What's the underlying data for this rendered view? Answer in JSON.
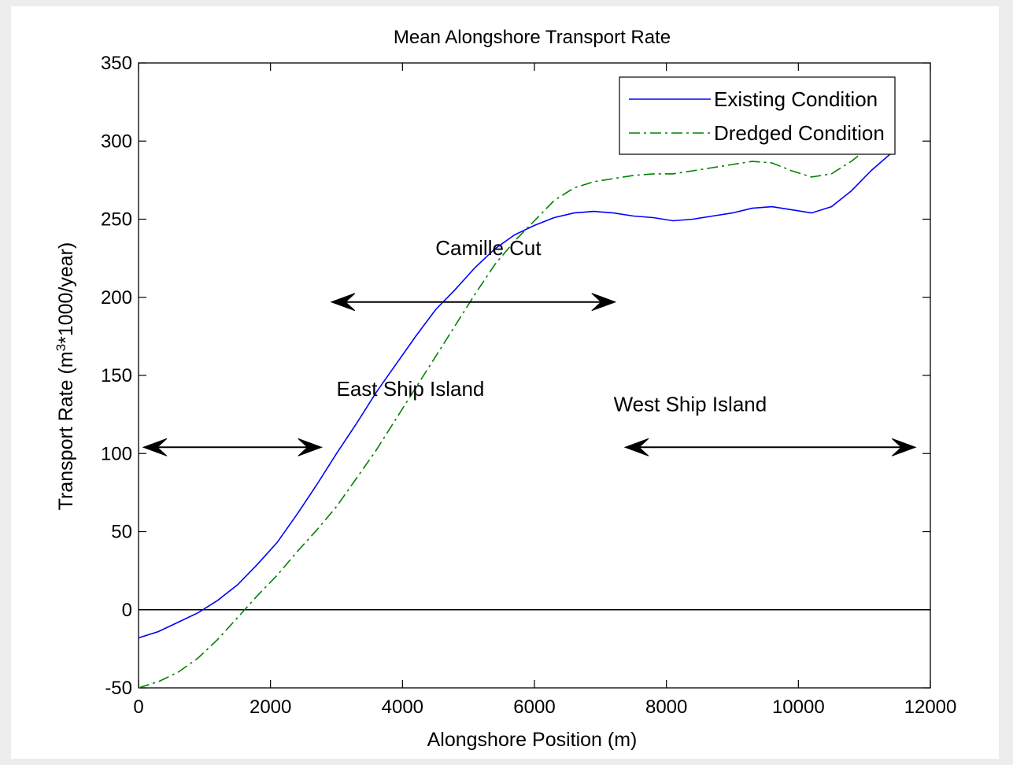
{
  "chart_data": {
    "type": "line",
    "title": "Mean Alongshore Transport Rate",
    "xlabel": "Alongshore Position (m)",
    "ylabel": "Transport Rate (m",
    "ylabel_sup": "3",
    "ylabel_suffix": "*1000/year)",
    "xlim": [
      0,
      12000
    ],
    "ylim": [
      -50,
      350
    ],
    "xticks": [
      0,
      2000,
      4000,
      6000,
      8000,
      10000,
      12000
    ],
    "yticks": [
      -50,
      0,
      50,
      100,
      150,
      200,
      250,
      300,
      350
    ],
    "grid": false,
    "legend_position": "top-right",
    "series": [
      {
        "name": "Existing Condition",
        "color": "#0000ff",
        "style": "solid",
        "x": [
          0,
          300,
          600,
          900,
          1200,
          1500,
          1800,
          2100,
          2400,
          2700,
          3000,
          3300,
          3600,
          3900,
          4200,
          4500,
          4800,
          5100,
          5400,
          5700,
          6000,
          6300,
          6600,
          6900,
          7200,
          7500,
          7800,
          8100,
          8400,
          8700,
          9000,
          9300,
          9600,
          9900,
          10200,
          10500,
          10800,
          11100,
          11400,
          11420
        ],
        "y": [
          -18,
          -14,
          -8,
          -2,
          6,
          16,
          29,
          43,
          61,
          80,
          100,
          119,
          139,
          157,
          175,
          192,
          205,
          219,
          231,
          240,
          246,
          251,
          254,
          255,
          254,
          252,
          251,
          249,
          250,
          252,
          254,
          257,
          258,
          256,
          254,
          258,
          268,
          281,
          292,
          294
        ]
      },
      {
        "name": "Dredged Condition",
        "color": "#008000",
        "style": "dash-dot",
        "x": [
          0,
          300,
          600,
          900,
          1200,
          1500,
          1800,
          2100,
          2400,
          2700,
          3000,
          3300,
          3600,
          3900,
          4200,
          4500,
          4800,
          5100,
          5400,
          5700,
          6000,
          6300,
          6600,
          6900,
          7200,
          7500,
          7800,
          8100,
          8400,
          8700,
          9000,
          9300,
          9600,
          9900,
          10200,
          10500,
          10800,
          11100
        ],
        "y": [
          -50,
          -46,
          -40,
          -31,
          -19,
          -5,
          9,
          22,
          37,
          51,
          66,
          84,
          102,
          122,
          142,
          162,
          182,
          202,
          221,
          236,
          249,
          262,
          270,
          274,
          276,
          278,
          279,
          279,
          281,
          283,
          285,
          287,
          286,
          281,
          277,
          279,
          287,
          297
        ]
      }
    ],
    "zero_line": 0,
    "annotations": [
      {
        "text": "Camille Cut",
        "x": 4500,
        "y": 227,
        "arrow_x": [
          2850,
          7250
        ],
        "arrow_y": 197
      },
      {
        "text": "East Ship Island",
        "x": 3000,
        "y": 137,
        "arrow_x": [
          0,
          2800
        ],
        "arrow_y": 104
      },
      {
        "text": "West Ship Island",
        "x": 7200,
        "y": 127,
        "arrow_x": [
          7300,
          11800
        ],
        "arrow_y": 104
      }
    ]
  }
}
